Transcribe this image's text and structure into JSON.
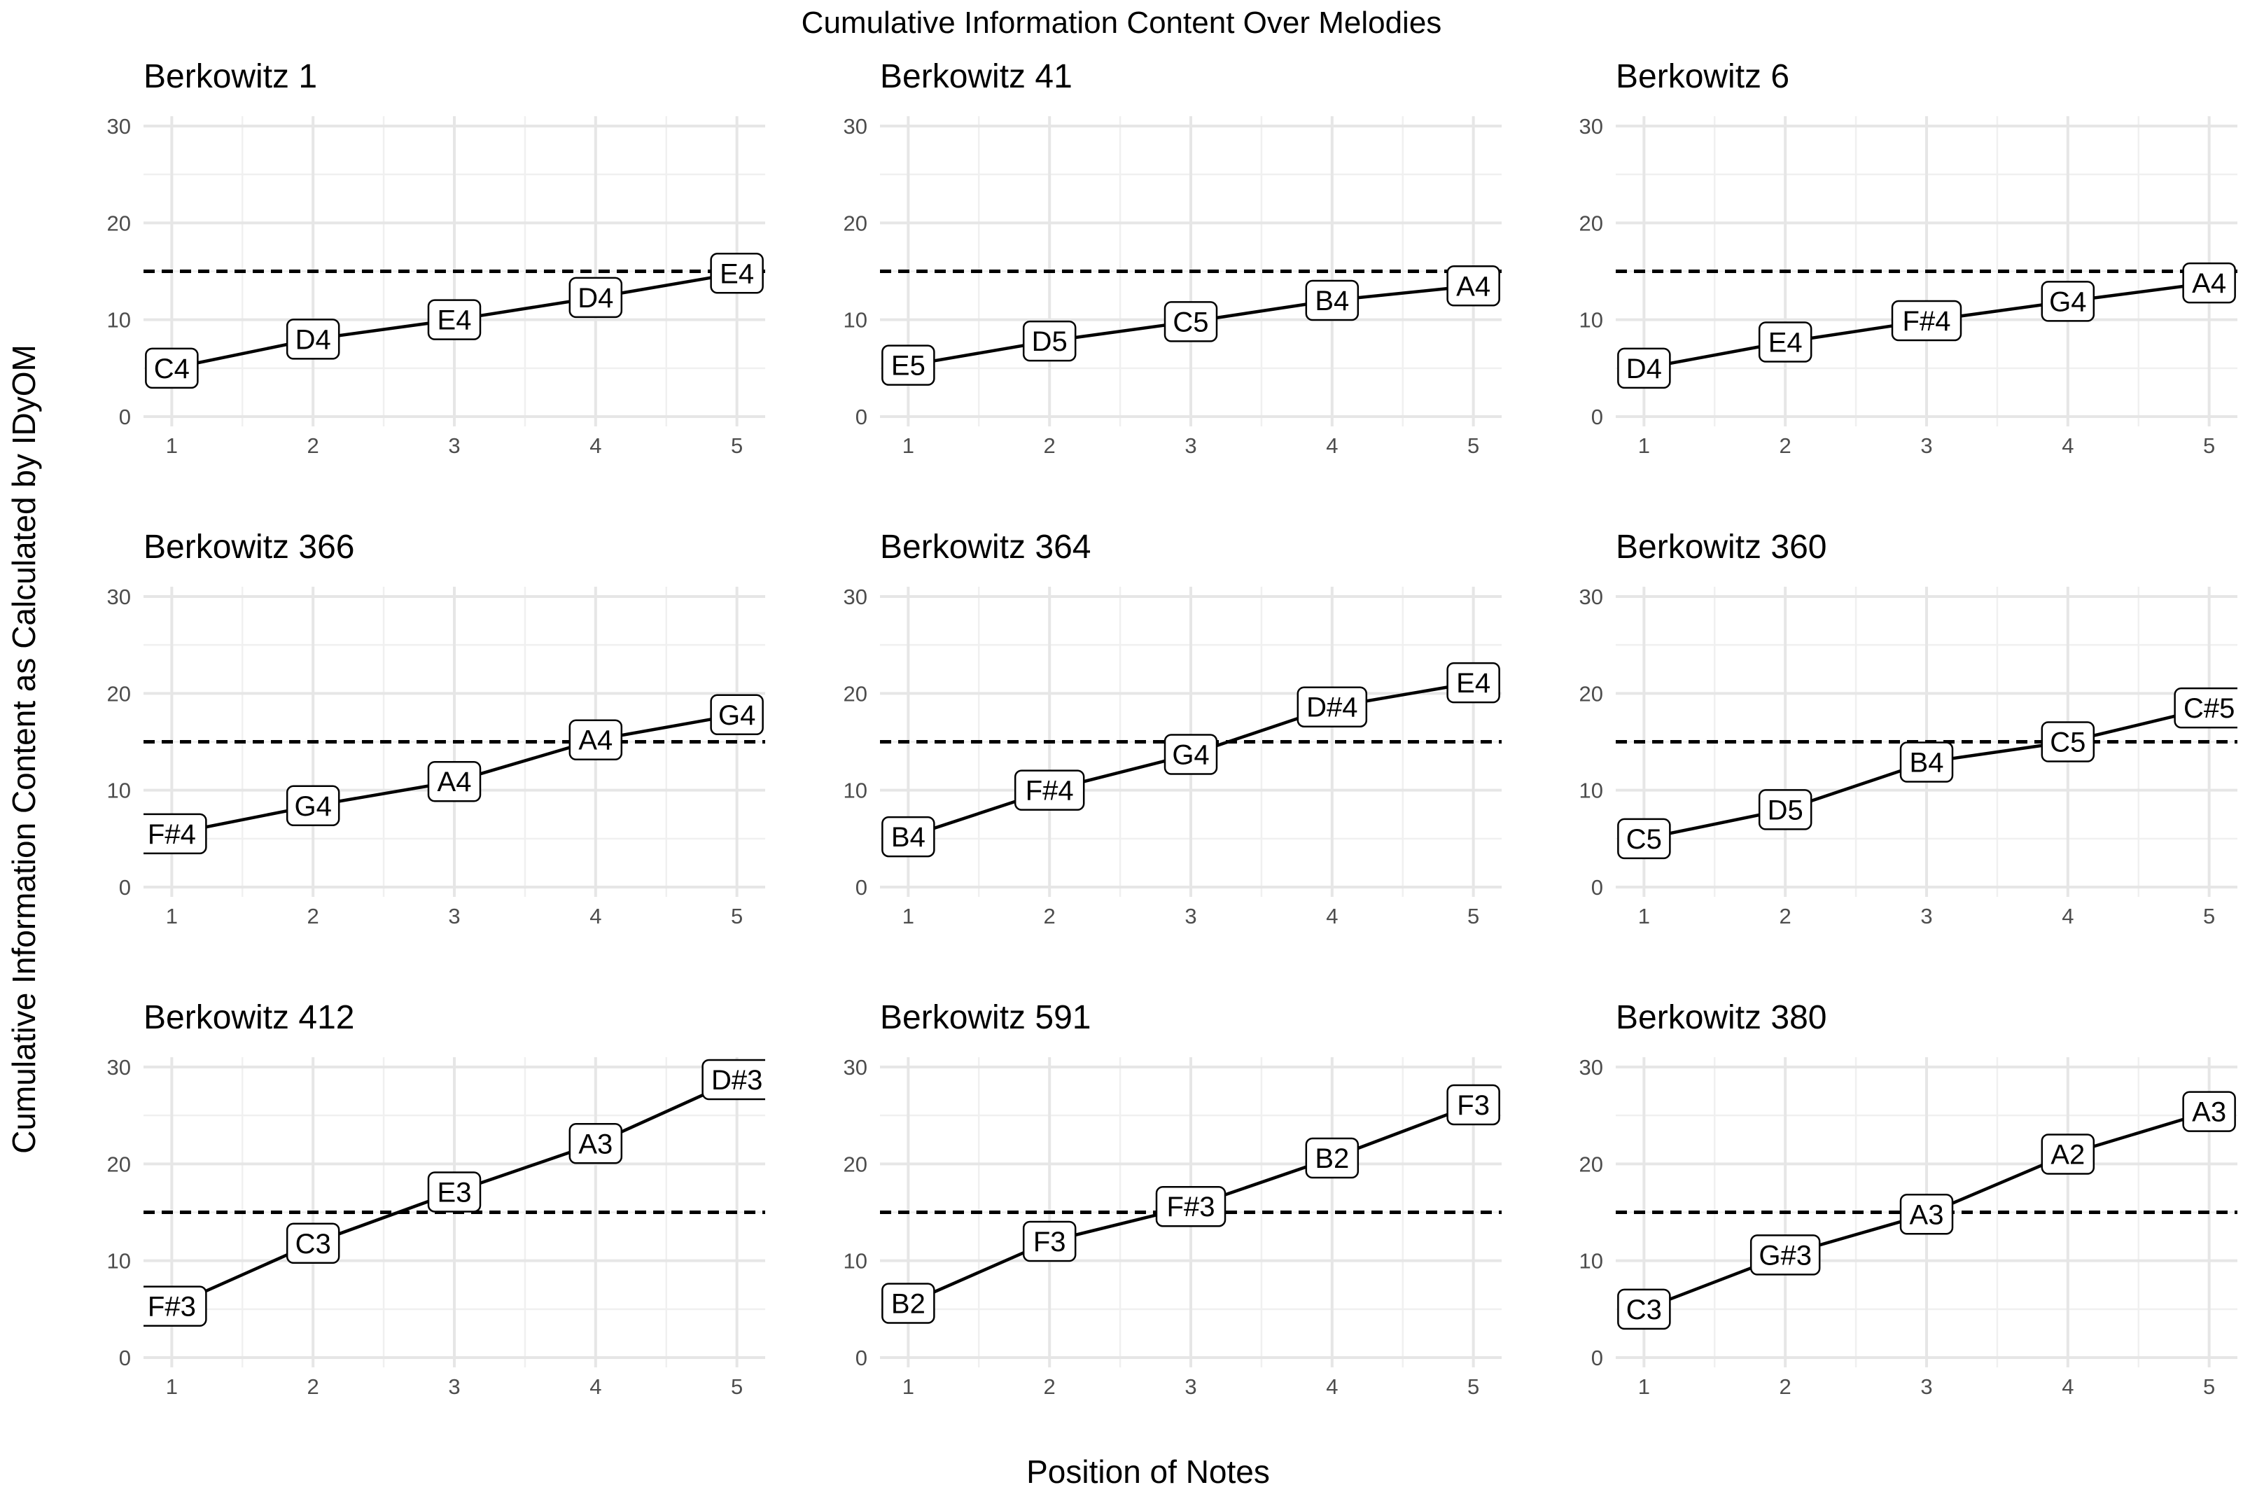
{
  "chart_data": {
    "type": "line",
    "title": "Cumulative Information Content Over Melodies",
    "xlabel": "Position of Notes",
    "ylabel": "Cumulative Information Content as Calculated by IDyOM",
    "xlim": [
      0.8,
      5.2
    ],
    "ylim": [
      0,
      30
    ],
    "x_ticks": [
      "1",
      "2",
      "3",
      "4",
      "5"
    ],
    "y_ticks": [
      "0",
      "10",
      "20",
      "30"
    ],
    "threshold": 15,
    "line_color": "#000000",
    "threshold_style": "dashed",
    "grid": true,
    "panels": [
      {
        "title": "Berkowitz 1",
        "x": [
          1,
          2,
          3,
          4,
          5
        ],
        "y": [
          5.0,
          8.0,
          10.0,
          12.3,
          14.8
        ],
        "notes": [
          "C4",
          "D4",
          "E4",
          "D4",
          "E4"
        ]
      },
      {
        "title": "Berkowitz 41",
        "x": [
          1,
          2,
          3,
          4,
          5
        ],
        "y": [
          5.3,
          7.8,
          9.8,
          12.0,
          13.5
        ],
        "notes": [
          "E5",
          "D5",
          "C5",
          "B4",
          "A4"
        ]
      },
      {
        "title": "Berkowitz 6",
        "x": [
          1,
          2,
          3,
          4,
          5
        ],
        "y": [
          5.0,
          7.7,
          9.9,
          11.9,
          13.8
        ],
        "notes": [
          "D4",
          "E4",
          "F#4",
          "G4",
          "A4"
        ]
      },
      {
        "title": "Berkowitz 366",
        "x": [
          1,
          2,
          3,
          4,
          5
        ],
        "y": [
          5.5,
          8.4,
          10.9,
          15.2,
          17.8
        ],
        "notes": [
          "F#4",
          "G4",
          "A4",
          "A4",
          "G4"
        ]
      },
      {
        "title": "Berkowitz 364",
        "x": [
          1,
          2,
          3,
          4,
          5
        ],
        "y": [
          5.2,
          10.0,
          13.7,
          18.6,
          21.1
        ],
        "notes": [
          "B4",
          "F#4",
          "G4",
          "D#4",
          "E4"
        ]
      },
      {
        "title": "Berkowitz 360",
        "x": [
          1,
          2,
          3,
          4,
          5
        ],
        "y": [
          5.0,
          8.0,
          12.9,
          15.0,
          18.5
        ],
        "notes": [
          "C5",
          "D5",
          "B4",
          "C5",
          "C#5"
        ]
      },
      {
        "title": "Berkowitz 412",
        "x": [
          1,
          2,
          3,
          4,
          5
        ],
        "y": [
          5.3,
          11.8,
          17.1,
          22.1,
          28.7
        ],
        "notes": [
          "F#3",
          "C3",
          "E3",
          "A3",
          "D#3"
        ]
      },
      {
        "title": "Berkowitz 591",
        "x": [
          1,
          2,
          3,
          4,
          5
        ],
        "y": [
          5.6,
          12.0,
          15.6,
          20.6,
          26.1
        ],
        "notes": [
          "B2",
          "F3",
          "F#3",
          "B2",
          "F3"
        ]
      },
      {
        "title": "Berkowitz 380",
        "x": [
          1,
          2,
          3,
          4,
          5
        ],
        "y": [
          5.0,
          10.6,
          14.8,
          21.0,
          25.4
        ],
        "notes": [
          "C3",
          "G#3",
          "A3",
          "A2",
          "A3"
        ]
      }
    ]
  }
}
